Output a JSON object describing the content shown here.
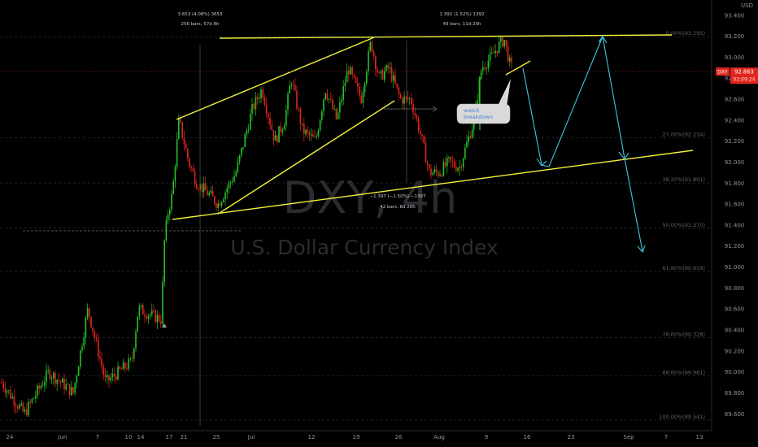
{
  "chart_data": {
    "type": "candlestick",
    "symbol": "DXY",
    "timeframe": "4h",
    "description": "U.S. Dollar Currency Index",
    "currency": "USD",
    "last_price": "92.863",
    "countdown": "02:09:24",
    "ylim": [
      89.48,
      93.42
    ],
    "y_ticks": [
      "93.400",
      "93.200",
      "93.000",
      "92.800",
      "92.600",
      "92.400",
      "92.200",
      "92.000",
      "91.800",
      "91.600",
      "91.400",
      "91.200",
      "91.000",
      "90.800",
      "90.600",
      "90.400",
      "90.200",
      "90.000",
      "89.800",
      "89.600"
    ],
    "x_ticks": [
      "24",
      "Jun",
      "7",
      "10",
      "14",
      "17",
      "21",
      "25",
      "Jul",
      "12",
      "19",
      "26",
      "Aug",
      "9",
      "16",
      "23",
      "Sep",
      "7",
      "13"
    ],
    "fib_levels": [
      {
        "label": "0.00%(93.195)",
        "value": 93.195
      },
      {
        "label": "27.00%(92.234)",
        "value": 92.234
      },
      {
        "label": "38.20%(91.801)",
        "value": 91.801
      },
      {
        "label": "50.00%(91.370)",
        "value": 91.37
      },
      {
        "label": "61.80%(90.959)",
        "value": 90.959
      },
      {
        "label": "78.60%(90.328)",
        "value": 90.328
      },
      {
        "label": "88.60%(89.961)",
        "value": 89.961
      },
      {
        "label": "100.00%(89.541)",
        "value": 89.541
      }
    ],
    "measurements": [
      {
        "line1": "3.653 (4.08%) 3653",
        "line2": "256 bars, 57d 8h"
      },
      {
        "line1": "1.392 (1.52%) 1392",
        "line2": "49 bars, 11d 20h"
      },
      {
        "line1": "−1.397 (−1.50%) −1397",
        "line2": "42 bars, 8d 20h"
      }
    ],
    "callout": "watch breakdown",
    "colors": {
      "up": "#27c227",
      "down": "#e0271f",
      "trend": "#f4f13a",
      "projection": "#3ec7e0",
      "price_tag": "#e0271f"
    }
  }
}
